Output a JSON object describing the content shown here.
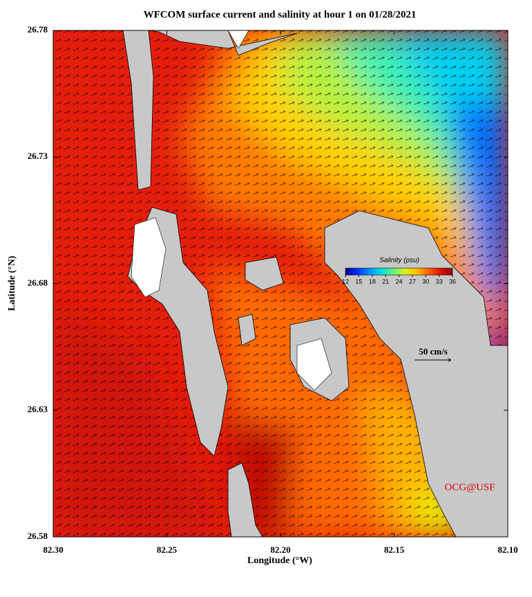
{
  "chart_data": {
    "type": "map",
    "title": "WFCOM surface current and salinity at hour 1 on 01/28/2021",
    "x_label": "Longitude (°W)",
    "y_label": "Latitude (°N)",
    "xlim": [
      82.3,
      82.1
    ],
    "ylim": [
      26.58,
      26.78
    ],
    "xticks": [
      {
        "value": 82.3,
        "label": "82.30"
      },
      82.25,
      {
        "value": 82.2,
        "label": "82.20"
      },
      82.15,
      {
        "value": 82.1,
        "label": "82.10"
      }
    ],
    "yticks": [
      26.58,
      26.63,
      26.68,
      26.73,
      26.78
    ],
    "colorbar": {
      "title": "Salinity (psu)",
      "range": [
        12,
        36
      ],
      "ticks": [
        12,
        15,
        18,
        21,
        24,
        27,
        30,
        33,
        36
      ],
      "colors": [
        "#00008c",
        "#0030ff",
        "#0090ff",
        "#00e0e0",
        "#60f080",
        "#d8f020",
        "#ffc000",
        "#ff6000",
        "#e01000",
        "#900000"
      ]
    },
    "scale_arrow": "50 cm/s",
    "credit": "OCG@USF"
  }
}
